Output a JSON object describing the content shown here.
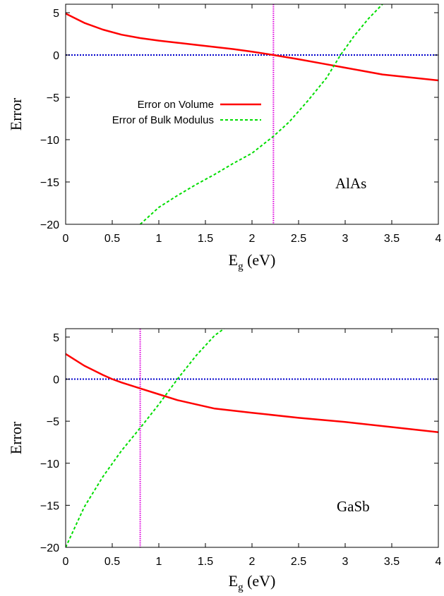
{
  "chart_data": [
    {
      "type": "line",
      "annotation": "AlAs",
      "xlabel_main": "E",
      "xlabel_sub": "g",
      "xlabel_rest": " (eV)",
      "ylabel": "Error",
      "xlim": [
        0,
        4
      ],
      "ylim": [
        -20,
        6
      ],
      "x_ticks": [
        "0",
        "0.5",
        "1",
        "1.5",
        "2",
        "2.5",
        "3",
        "3.5",
        "4"
      ],
      "y_ticks": [
        "5",
        "0",
        "−5",
        "−10",
        "−15",
        "−20"
      ],
      "zero_line": 0,
      "vline_x": 2.23,
      "legend_position": "upper-left",
      "series": [
        {
          "name": "Error on Volume",
          "color": "#ff0000",
          "style": "solid",
          "x": [
            0,
            0.2,
            0.4,
            0.6,
            0.8,
            1.0,
            1.2,
            1.4,
            1.6,
            1.8,
            2.0,
            2.23,
            2.5,
            2.8,
            3.0,
            3.4,
            4.0
          ],
          "y": [
            4.9,
            3.8,
            3.0,
            2.4,
            2.0,
            1.7,
            1.45,
            1.2,
            0.95,
            0.7,
            0.4,
            0.0,
            -0.5,
            -1.1,
            -1.5,
            -2.3,
            -3.0
          ]
        },
        {
          "name": "Error of Bulk Modulus",
          "color": "#00dd00",
          "style": "dashed",
          "x": [
            0.8,
            1.0,
            1.2,
            1.4,
            1.6,
            1.8,
            2.0,
            2.23,
            2.4,
            2.6,
            2.8,
            2.95,
            3.1,
            3.25,
            3.4
          ],
          "y": [
            -20.0,
            -18.0,
            -16.6,
            -15.3,
            -14.1,
            -12.8,
            -11.6,
            -9.6,
            -7.9,
            -5.4,
            -2.7,
            0.0,
            2.3,
            4.3,
            6.0
          ]
        }
      ]
    },
    {
      "type": "line",
      "annotation": "GaSb",
      "xlabel_main": "E",
      "xlabel_sub": "g",
      "xlabel_rest": " (eV)",
      "ylabel": "Error",
      "xlim": [
        0,
        4
      ],
      "ylim": [
        -20,
        6
      ],
      "x_ticks": [
        "0",
        "0.5",
        "1",
        "1.5",
        "2",
        "2.5",
        "3",
        "3.5",
        "4"
      ],
      "y_ticks": [
        "5",
        "0",
        "−5",
        "−10",
        "−15",
        "−20"
      ],
      "zero_line": 0,
      "vline_x": 0.8,
      "series": [
        {
          "color": "#ff0000",
          "style": "solid",
          "x": [
            0,
            0.2,
            0.4,
            0.5,
            0.6,
            0.8,
            1.0,
            1.2,
            1.4,
            1.6,
            2.0,
            2.5,
            3.0,
            3.5,
            4.0
          ],
          "y": [
            3.0,
            1.6,
            0.5,
            0.0,
            -0.4,
            -1.1,
            -1.8,
            -2.5,
            -3.0,
            -3.5,
            -4.0,
            -4.6,
            -5.1,
            -5.7,
            -6.3
          ]
        },
        {
          "color": "#00dd00",
          "style": "dashed",
          "x": [
            0,
            0.2,
            0.4,
            0.6,
            0.8,
            1.0,
            1.2,
            1.4,
            1.6,
            1.7
          ],
          "y": [
            -20.0,
            -15.2,
            -11.6,
            -8.5,
            -5.8,
            -3.0,
            0.0,
            2.8,
            5.2,
            6.0
          ]
        }
      ]
    }
  ]
}
